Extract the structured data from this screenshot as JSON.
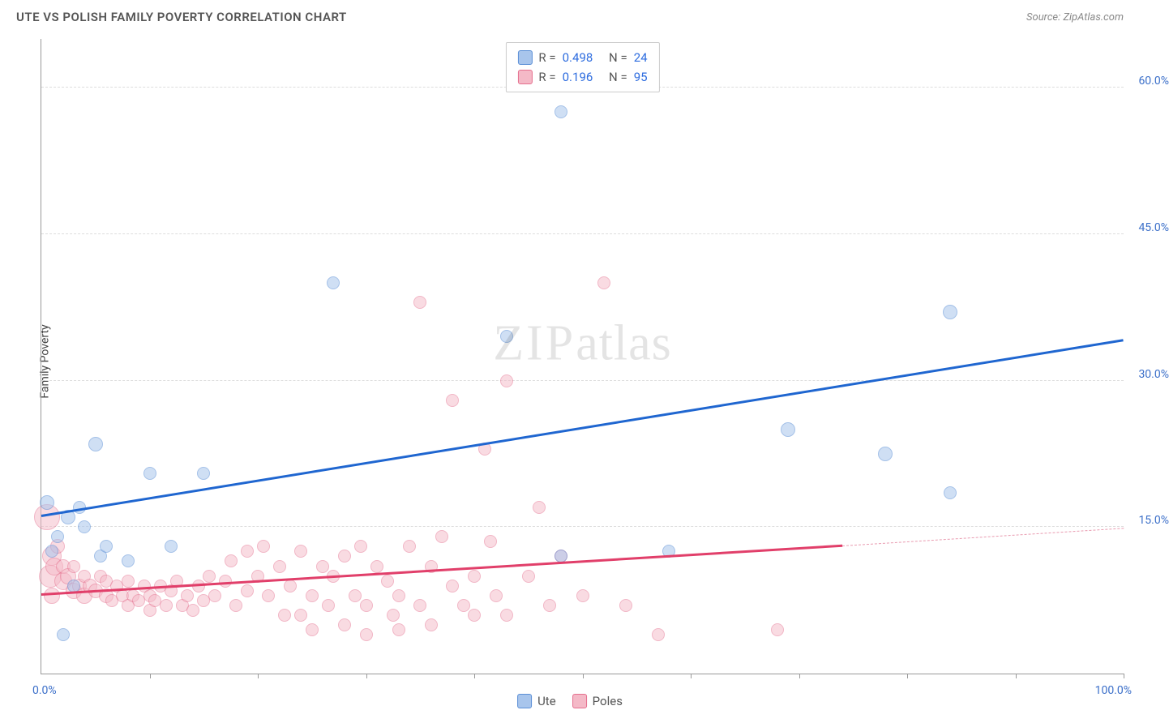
{
  "header": {
    "title": "UTE VS POLISH FAMILY POVERTY CORRELATION CHART",
    "source_label": "Source:",
    "source_name": "ZipAtlas.com"
  },
  "watermark": {
    "zip": "ZIP",
    "atlas": "atlas"
  },
  "chart": {
    "type": "scatter",
    "ylabel": "Family Poverty",
    "xlim": [
      0,
      100
    ],
    "ylim": [
      0,
      65
    ],
    "xtick_step": 10,
    "yticks": [
      15.0,
      30.0,
      45.0,
      60.0
    ],
    "ytick_labels": [
      "15.0%",
      "30.0%",
      "45.0%",
      "60.0%"
    ],
    "xlabel_min": "0.0%",
    "xlabel_max": "100.0%",
    "background_color": "#ffffff",
    "grid_color": "#dddddd",
    "series": [
      {
        "name": "Ute",
        "fill": "#a8c5ec",
        "stroke": "#5b8fd6",
        "fill_opacity": 0.55,
        "marker_radius": 8,
        "r_value": "0.498",
        "n_value": "24",
        "trend": {
          "x1": 0,
          "y1": 16.0,
          "x2": 100,
          "y2": 34.0,
          "color": "#1f66d0",
          "width": 3
        },
        "points": [
          {
            "x": 0.5,
            "y": 17.5,
            "r": 9
          },
          {
            "x": 1,
            "y": 12.5,
            "r": 8
          },
          {
            "x": 2,
            "y": 4,
            "r": 8
          },
          {
            "x": 2.5,
            "y": 16,
            "r": 9
          },
          {
            "x": 3.5,
            "y": 17,
            "r": 8
          },
          {
            "x": 4,
            "y": 15,
            "r": 8
          },
          {
            "x": 5,
            "y": 23.5,
            "r": 9
          },
          {
            "x": 5.5,
            "y": 12,
            "r": 8
          },
          {
            "x": 6,
            "y": 13,
            "r": 8
          },
          {
            "x": 8,
            "y": 11.5,
            "r": 8
          },
          {
            "x": 10,
            "y": 20.5,
            "r": 8
          },
          {
            "x": 12,
            "y": 13,
            "r": 8
          },
          {
            "x": 15,
            "y": 20.5,
            "r": 8
          },
          {
            "x": 27,
            "y": 40,
            "r": 8
          },
          {
            "x": 43,
            "y": 34.5,
            "r": 8
          },
          {
            "x": 48,
            "y": 57.5,
            "r": 8
          },
          {
            "x": 58,
            "y": 12.5,
            "r": 8
          },
          {
            "x": 69,
            "y": 25,
            "r": 9
          },
          {
            "x": 78,
            "y": 22.5,
            "r": 9
          },
          {
            "x": 84,
            "y": 18.5,
            "r": 8
          },
          {
            "x": 84,
            "y": 37,
            "r": 9
          },
          {
            "x": 48,
            "y": 12,
            "r": 8
          },
          {
            "x": 3,
            "y": 9,
            "r": 8
          },
          {
            "x": 1.5,
            "y": 14,
            "r": 8
          }
        ]
      },
      {
        "name": "Poles",
        "fill": "#f4b9c7",
        "stroke": "#e56f8e",
        "fill_opacity": 0.5,
        "marker_radius": 8,
        "r_value": "0.196",
        "n_value": "95",
        "trend": {
          "x1": 0,
          "y1": 8.0,
          "x2": 74,
          "y2": 13.0,
          "color": "#e13f6a",
          "width": 3
        },
        "trend_ext": {
          "x1": 74,
          "y1": 13.0,
          "x2": 100,
          "y2": 14.8,
          "color": "#e99bb0",
          "width": 1.5,
          "dashed": true
        },
        "points": [
          {
            "x": 0.5,
            "y": 16,
            "r": 16
          },
          {
            "x": 0.8,
            "y": 10,
            "r": 14
          },
          {
            "x": 1,
            "y": 12,
            "r": 12
          },
          {
            "x": 1,
            "y": 8,
            "r": 10
          },
          {
            "x": 1.2,
            "y": 11,
            "r": 11
          },
          {
            "x": 1.5,
            "y": 13,
            "r": 9
          },
          {
            "x": 2,
            "y": 9.5,
            "r": 11
          },
          {
            "x": 2,
            "y": 11,
            "r": 9
          },
          {
            "x": 2.5,
            "y": 10,
            "r": 10
          },
          {
            "x": 3,
            "y": 8.5,
            "r": 10
          },
          {
            "x": 3,
            "y": 11,
            "r": 8
          },
          {
            "x": 3.5,
            "y": 9,
            "r": 9
          },
          {
            "x": 4,
            "y": 8,
            "r": 10
          },
          {
            "x": 4,
            "y": 10,
            "r": 8
          },
          {
            "x": 4.5,
            "y": 9,
            "r": 9
          },
          {
            "x": 5,
            "y": 8.5,
            "r": 9
          },
          {
            "x": 5.5,
            "y": 10,
            "r": 8
          },
          {
            "x": 6,
            "y": 8,
            "r": 9
          },
          {
            "x": 6,
            "y": 9.5,
            "r": 8
          },
          {
            "x": 6.5,
            "y": 7.5,
            "r": 8
          },
          {
            "x": 7,
            "y": 9,
            "r": 8
          },
          {
            "x": 7.5,
            "y": 8,
            "r": 8
          },
          {
            "x": 8,
            "y": 7,
            "r": 8
          },
          {
            "x": 8,
            "y": 9.5,
            "r": 8
          },
          {
            "x": 8.5,
            "y": 8,
            "r": 8
          },
          {
            "x": 9,
            "y": 7.5,
            "r": 8
          },
          {
            "x": 9.5,
            "y": 9,
            "r": 8
          },
          {
            "x": 10,
            "y": 8,
            "r": 8
          },
          {
            "x": 10,
            "y": 6.5,
            "r": 8
          },
          {
            "x": 10.5,
            "y": 7.5,
            "r": 8
          },
          {
            "x": 11,
            "y": 9,
            "r": 8
          },
          {
            "x": 11.5,
            "y": 7,
            "r": 8
          },
          {
            "x": 12,
            "y": 8.5,
            "r": 8
          },
          {
            "x": 12.5,
            "y": 9.5,
            "r": 8
          },
          {
            "x": 13,
            "y": 7,
            "r": 8
          },
          {
            "x": 13.5,
            "y": 8,
            "r": 8
          },
          {
            "x": 14,
            "y": 6.5,
            "r": 8
          },
          {
            "x": 14.5,
            "y": 9,
            "r": 8
          },
          {
            "x": 15,
            "y": 7.5,
            "r": 8
          },
          {
            "x": 15.5,
            "y": 10,
            "r": 8
          },
          {
            "x": 16,
            "y": 8,
            "r": 8
          },
          {
            "x": 17,
            "y": 9.5,
            "r": 8
          },
          {
            "x": 17.5,
            "y": 11.5,
            "r": 8
          },
          {
            "x": 18,
            "y": 7,
            "r": 8
          },
          {
            "x": 19,
            "y": 12.5,
            "r": 8
          },
          {
            "x": 19,
            "y": 8.5,
            "r": 8
          },
          {
            "x": 20,
            "y": 10,
            "r": 8
          },
          {
            "x": 20.5,
            "y": 13,
            "r": 8
          },
          {
            "x": 21,
            "y": 8,
            "r": 8
          },
          {
            "x": 22,
            "y": 11,
            "r": 8
          },
          {
            "x": 22.5,
            "y": 6,
            "r": 8
          },
          {
            "x": 23,
            "y": 9,
            "r": 8
          },
          {
            "x": 24,
            "y": 12.5,
            "r": 8
          },
          {
            "x": 24,
            "y": 6,
            "r": 8
          },
          {
            "x": 25,
            "y": 8,
            "r": 8
          },
          {
            "x": 25,
            "y": 4.5,
            "r": 8
          },
          {
            "x": 26,
            "y": 11,
            "r": 8
          },
          {
            "x": 26.5,
            "y": 7,
            "r": 8
          },
          {
            "x": 27,
            "y": 10,
            "r": 8
          },
          {
            "x": 28,
            "y": 5,
            "r": 8
          },
          {
            "x": 28,
            "y": 12,
            "r": 8
          },
          {
            "x": 29,
            "y": 8,
            "r": 8
          },
          {
            "x": 29.5,
            "y": 13,
            "r": 8
          },
          {
            "x": 30,
            "y": 7,
            "r": 8
          },
          {
            "x": 30,
            "y": 4,
            "r": 8
          },
          {
            "x": 31,
            "y": 11,
            "r": 8
          },
          {
            "x": 32,
            "y": 9.5,
            "r": 8
          },
          {
            "x": 32.5,
            "y": 6,
            "r": 8
          },
          {
            "x": 33,
            "y": 8,
            "r": 8
          },
          {
            "x": 33,
            "y": 4.5,
            "r": 8
          },
          {
            "x": 34,
            "y": 13,
            "r": 8
          },
          {
            "x": 35,
            "y": 38,
            "r": 8
          },
          {
            "x": 35,
            "y": 7,
            "r": 8
          },
          {
            "x": 36,
            "y": 11,
            "r": 8
          },
          {
            "x": 36,
            "y": 5,
            "r": 8
          },
          {
            "x": 37,
            "y": 14,
            "r": 8
          },
          {
            "x": 38,
            "y": 28,
            "r": 8
          },
          {
            "x": 38,
            "y": 9,
            "r": 8
          },
          {
            "x": 39,
            "y": 7,
            "r": 8
          },
          {
            "x": 40,
            "y": 10,
            "r": 8
          },
          {
            "x": 40,
            "y": 6,
            "r": 8
          },
          {
            "x": 41,
            "y": 23,
            "r": 8
          },
          {
            "x": 41.5,
            "y": 13.5,
            "r": 8
          },
          {
            "x": 42,
            "y": 8,
            "r": 8
          },
          {
            "x": 43,
            "y": 30,
            "r": 8
          },
          {
            "x": 43,
            "y": 6,
            "r": 8
          },
          {
            "x": 45,
            "y": 10,
            "r": 8
          },
          {
            "x": 46,
            "y": 17,
            "r": 8
          },
          {
            "x": 47,
            "y": 7,
            "r": 8
          },
          {
            "x": 48,
            "y": 12,
            "r": 8
          },
          {
            "x": 50,
            "y": 8,
            "r": 8
          },
          {
            "x": 52,
            "y": 40,
            "r": 8
          },
          {
            "x": 54,
            "y": 7,
            "r": 8
          },
          {
            "x": 57,
            "y": 4,
            "r": 8
          },
          {
            "x": 68,
            "y": 4.5,
            "r": 8
          }
        ]
      }
    ]
  },
  "legend": {
    "r_label": "R =",
    "n_label": "N ="
  },
  "bottom_legend": {
    "items": [
      "Ute",
      "Poles"
    ]
  }
}
